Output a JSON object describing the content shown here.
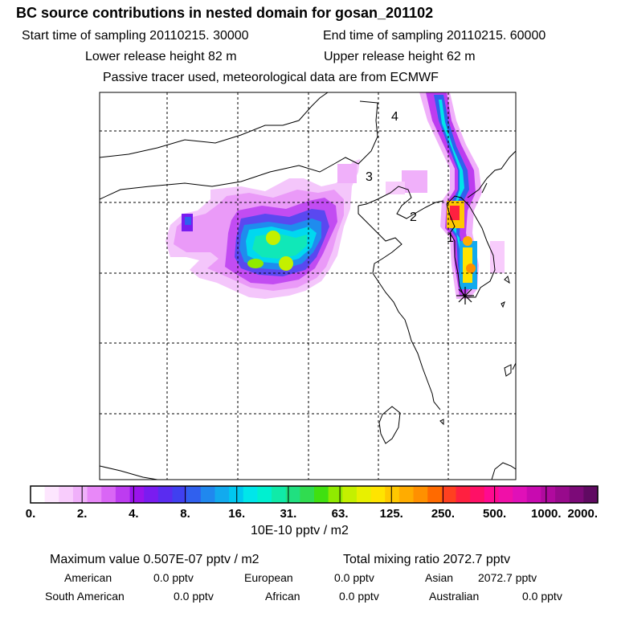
{
  "header": {
    "title": "BC  source contributions in nested domain for gosan_201102",
    "start_time": "Start time of sampling 20110215. 30000",
    "end_time": "End time of sampling 20110215. 60000",
    "lower_release": "Lower release height   82 m",
    "upper_release": "Upper release height   62 m",
    "passive_note": "Passive tracer used, meteorological data are from ECMWF"
  },
  "map": {
    "labels": [
      "4",
      "3",
      "2",
      "1"
    ],
    "receptor_marker": "asterisk-marker"
  },
  "colorbar": {
    "ticks": [
      "0.",
      "2.",
      "4.",
      "8.",
      "16.",
      "31.",
      "63.",
      "125.",
      "250.",
      "500.",
      "1000.",
      "2000."
    ],
    "unit": "10E-10 pptv / m2",
    "colors": [
      "#ffffff",
      "#fde6fe",
      "#f8ccfc",
      "#f0b0fa",
      "#e888f8",
      "#d966f5",
      "#bd3cf0",
      "#9a14ec",
      "#7a1cf0",
      "#5a2cf0",
      "#4040f0",
      "#3060ee",
      "#2088ee",
      "#12aaee",
      "#00c8f0",
      "#00e6ea",
      "#00f0d0",
      "#10eaa8",
      "#20e080",
      "#30dc50",
      "#40e010",
      "#90ea00",
      "#c4f000",
      "#e8f000",
      "#ffe400",
      "#ffc800",
      "#ffac00",
      "#ff9000",
      "#ff6a00",
      "#ff4020",
      "#ff2040",
      "#ff1066",
      "#ff0a90",
      "#f010a8",
      "#e010b8",
      "#c80ab0",
      "#b00a9e",
      "#980a8c",
      "#7c0a78",
      "#600a62"
    ]
  },
  "stats": {
    "max_value": "Maximum value  0.507E-07 pptv / m2",
    "total_mixing": "Total mixing ratio     2072.7 pptv",
    "regions": [
      {
        "name": "American",
        "value": "0.0 pptv"
      },
      {
        "name": "European",
        "value": "0.0 pptv"
      },
      {
        "name": "Asian",
        "value": "2072.7 pptv"
      },
      {
        "name": "South American",
        "value": "0.0 pptv"
      },
      {
        "name": "African",
        "value": "0.0 pptv"
      },
      {
        "name": "Australian",
        "value": "0.0 pptv"
      }
    ]
  }
}
